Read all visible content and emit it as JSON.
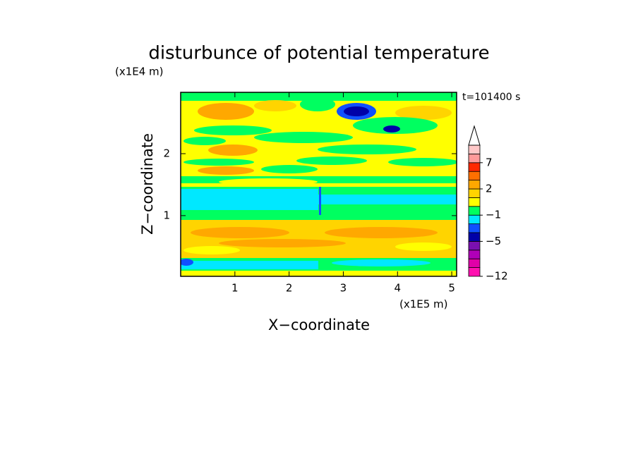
{
  "chart_data": {
    "type": "contour",
    "title": "disturbunce of potential temperature",
    "time_label": "t=101400 s",
    "x_label": "X−coordinate",
    "y_label": "Z−coordinate",
    "x_unit": "(x1E5 m)",
    "y_unit": "(x1E4 m)",
    "xlim": [
      0,
      5.09
    ],
    "ylim": [
      0.02,
      2.99
    ],
    "xticks": [
      1,
      2,
      3,
      4,
      5
    ],
    "yticks": [
      1,
      2
    ],
    "colorbar": {
      "levels": [
        -12,
        -10,
        -8,
        -6,
        -5,
        -4,
        -2,
        -1,
        0,
        1,
        2,
        3,
        5,
        7,
        9,
        11
      ],
      "colors": [
        "#ff10b0",
        "#e000a8",
        "#b000b8",
        "#7a10b0",
        "#0000a8",
        "#1050ff",
        "#00e8ff",
        "#00ff60",
        "#ffff00",
        "#ffd400",
        "#ffa800",
        "#ff7000",
        "#ff2800",
        "#ff9a9a",
        "#ffc8c8"
      ],
      "ticks": [
        {
          "value": -12,
          "label": "−12"
        },
        {
          "value": -5,
          "label": "−5"
        },
        {
          "value": -1,
          "label": "−1"
        },
        2,
        7
      ]
    }
  }
}
